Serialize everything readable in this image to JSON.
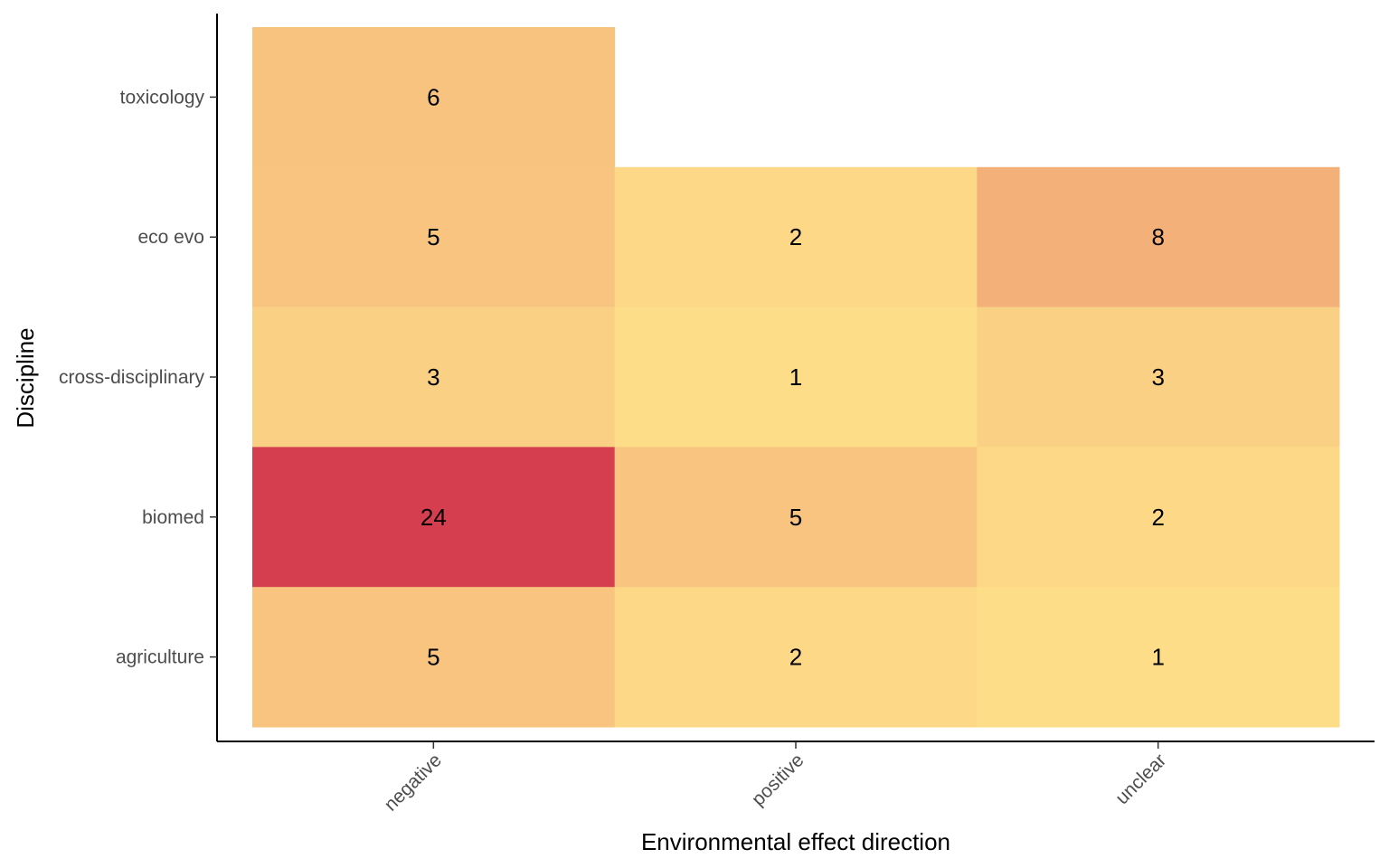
{
  "chart_data": {
    "type": "heatmap",
    "x_categories": [
      "negative",
      "positive",
      "unclear"
    ],
    "y_categories": [
      "agriculture",
      "biomed",
      "cross-disciplinary",
      "eco evo",
      "toxicology"
    ],
    "xlabel": "Environmental effect direction",
    "ylabel": "Discipline",
    "cells": [
      {
        "x": "negative",
        "y": "toxicology",
        "value": 6
      },
      {
        "x": "negative",
        "y": "eco evo",
        "value": 5
      },
      {
        "x": "positive",
        "y": "eco evo",
        "value": 2
      },
      {
        "x": "unclear",
        "y": "eco evo",
        "value": 8
      },
      {
        "x": "negative",
        "y": "cross-disciplinary",
        "value": 3
      },
      {
        "x": "positive",
        "y": "cross-disciplinary",
        "value": 1
      },
      {
        "x": "unclear",
        "y": "cross-disciplinary",
        "value": 3
      },
      {
        "x": "negative",
        "y": "biomed",
        "value": 24
      },
      {
        "x": "positive",
        "y": "biomed",
        "value": 5
      },
      {
        "x": "unclear",
        "y": "biomed",
        "value": 2
      },
      {
        "x": "negative",
        "y": "agriculture",
        "value": 5
      },
      {
        "x": "positive",
        "y": "agriculture",
        "value": 2
      },
      {
        "x": "unclear",
        "y": "agriculture",
        "value": 1
      }
    ],
    "value_range": [
      1,
      24
    ],
    "colors": {
      "1": "#fedd88",
      "2": "#fdd886",
      "3": "#fad184",
      "5": "#f8c480",
      "6": "#f8c27f",
      "8": "#f3b078",
      "24": "#d53e4f"
    },
    "grid": false,
    "legend": "none"
  }
}
